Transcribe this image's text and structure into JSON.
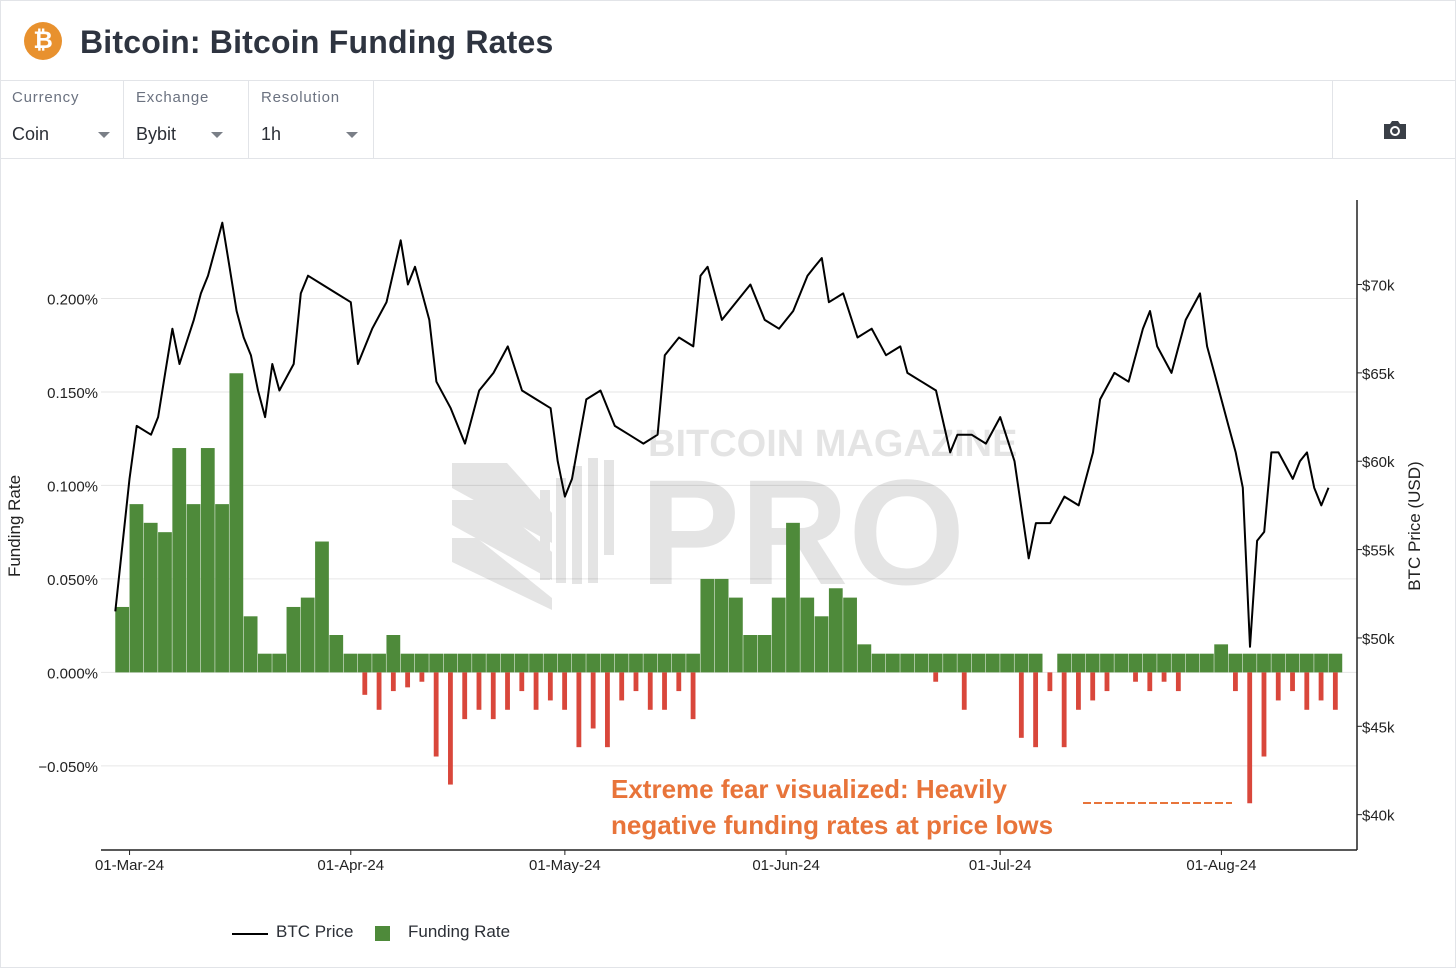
{
  "header": {
    "title": "Bitcoin: Bitcoin Funding Rates",
    "logo_glyph": "₿"
  },
  "controls": [
    {
      "label": "Currency",
      "value": "Coin"
    },
    {
      "label": "Exchange",
      "value": "Bybit"
    },
    {
      "label": "Resolution",
      "value": "1h"
    }
  ],
  "toolbar": {
    "icon": "camera-icon"
  },
  "watermark": {
    "line1": "BITCOIN MAGAZINE",
    "line2": "PRO"
  },
  "annotation": {
    "line1": "Extreme fear visualized: Heavily",
    "line2": "negative funding rates at price lows",
    "color": "#e8743a"
  },
  "legend": {
    "price": "BTC Price",
    "funding": "Funding Rate"
  },
  "colors": {
    "price": "#000000",
    "positive": "#4e8a3a",
    "negative": "#d9473b"
  },
  "chart_data": {
    "type": "bar",
    "title": "Bitcoin: Bitcoin Funding Rates",
    "xlabel": "",
    "ylabel": "Funding Rate",
    "y2label": "BTC Price (USD)",
    "x_ticks": [
      "01-Mar-24",
      "01-Apr-24",
      "01-May-24",
      "01-Jun-24",
      "01-Jul-24",
      "01-Aug-24"
    ],
    "x_range": [
      "2024-02-26",
      "2024-08-20"
    ],
    "y_ticks": [
      "0.200%",
      "0.150%",
      "0.100%",
      "0.050%",
      "0.000%",
      "−0.050%"
    ],
    "ylim": [
      -0.095,
      0.25
    ],
    "y2_ticks": [
      "$70k",
      "$65k",
      "$60k",
      "$55k",
      "$50k",
      "$45k",
      "$40k"
    ],
    "y2lim": [
      38000,
      74500
    ],
    "grid": true,
    "legend_position": "bottom-left",
    "series": [
      {
        "name": "BTC Price",
        "type": "line",
        "axis": "right",
        "points": [
          [
            "2024-02-28",
            51500
          ],
          [
            "2024-03-01",
            59000
          ],
          [
            "2024-03-02",
            62000
          ],
          [
            "2024-03-04",
            61500
          ],
          [
            "2024-03-05",
            62500
          ],
          [
            "2024-03-06",
            65000
          ],
          [
            "2024-03-07",
            67500
          ],
          [
            "2024-03-08",
            65500
          ],
          [
            "2024-03-10",
            68000
          ],
          [
            "2024-03-11",
            69500
          ],
          [
            "2024-03-12",
            70500
          ],
          [
            "2024-03-13",
            72000
          ],
          [
            "2024-03-14",
            73500
          ],
          [
            "2024-03-15",
            71000
          ],
          [
            "2024-03-16",
            68500
          ],
          [
            "2024-03-17",
            67000
          ],
          [
            "2024-03-18",
            66000
          ],
          [
            "2024-03-19",
            64000
          ],
          [
            "2024-03-20",
            62500
          ],
          [
            "2024-03-21",
            65500
          ],
          [
            "2024-03-22",
            64000
          ],
          [
            "2024-03-24",
            65500
          ],
          [
            "2024-03-25",
            69500
          ],
          [
            "2024-03-26",
            70500
          ],
          [
            "2024-03-28",
            70000
          ],
          [
            "2024-03-30",
            69500
          ],
          [
            "2024-04-01",
            69000
          ],
          [
            "2024-04-02",
            65500
          ],
          [
            "2024-04-04",
            67500
          ],
          [
            "2024-04-06",
            69000
          ],
          [
            "2024-04-08",
            72500
          ],
          [
            "2024-04-09",
            70000
          ],
          [
            "2024-04-10",
            71000
          ],
          [
            "2024-04-12",
            68000
          ],
          [
            "2024-04-13",
            64500
          ],
          [
            "2024-04-15",
            63000
          ],
          [
            "2024-04-17",
            61000
          ],
          [
            "2024-04-19",
            64000
          ],
          [
            "2024-04-21",
            65000
          ],
          [
            "2024-04-23",
            66500
          ],
          [
            "2024-04-25",
            64000
          ],
          [
            "2024-04-27",
            63500
          ],
          [
            "2024-04-29",
            63000
          ],
          [
            "2024-04-30",
            60000
          ],
          [
            "2024-05-01",
            58000
          ],
          [
            "2024-05-02",
            59000
          ],
          [
            "2024-05-04",
            63500
          ],
          [
            "2024-05-06",
            64000
          ],
          [
            "2024-05-08",
            62000
          ],
          [
            "2024-05-10",
            61500
          ],
          [
            "2024-05-12",
            61000
          ],
          [
            "2024-05-14",
            61500
          ],
          [
            "2024-05-15",
            66000
          ],
          [
            "2024-05-17",
            67000
          ],
          [
            "2024-05-19",
            66500
          ],
          [
            "2024-05-20",
            70500
          ],
          [
            "2024-05-21",
            71000
          ],
          [
            "2024-05-23",
            68000
          ],
          [
            "2024-05-25",
            69000
          ],
          [
            "2024-05-27",
            70000
          ],
          [
            "2024-05-29",
            68000
          ],
          [
            "2024-05-31",
            67500
          ],
          [
            "2024-06-02",
            68500
          ],
          [
            "2024-06-04",
            70500
          ],
          [
            "2024-06-05",
            71000
          ],
          [
            "2024-06-06",
            71500
          ],
          [
            "2024-06-07",
            69000
          ],
          [
            "2024-06-09",
            69500
          ],
          [
            "2024-06-11",
            67000
          ],
          [
            "2024-06-13",
            67500
          ],
          [
            "2024-06-15",
            66000
          ],
          [
            "2024-06-17",
            66500
          ],
          [
            "2024-06-18",
            65000
          ],
          [
            "2024-06-20",
            64500
          ],
          [
            "2024-06-22",
            64000
          ],
          [
            "2024-06-24",
            60500
          ],
          [
            "2024-06-25",
            61500
          ],
          [
            "2024-06-27",
            61500
          ],
          [
            "2024-06-29",
            61000
          ],
          [
            "2024-07-01",
            62500
          ],
          [
            "2024-07-03",
            60000
          ],
          [
            "2024-07-05",
            54500
          ],
          [
            "2024-07-06",
            56500
          ],
          [
            "2024-07-08",
            56500
          ],
          [
            "2024-07-10",
            58000
          ],
          [
            "2024-07-12",
            57500
          ],
          [
            "2024-07-14",
            60500
          ],
          [
            "2024-07-15",
            63500
          ],
          [
            "2024-07-17",
            65000
          ],
          [
            "2024-07-19",
            64500
          ],
          [
            "2024-07-21",
            67500
          ],
          [
            "2024-07-22",
            68500
          ],
          [
            "2024-07-23",
            66500
          ],
          [
            "2024-07-25",
            65000
          ],
          [
            "2024-07-27",
            68000
          ],
          [
            "2024-07-29",
            69500
          ],
          [
            "2024-07-30",
            66500
          ],
          [
            "2024-07-31",
            65000
          ],
          [
            "2024-08-02",
            62000
          ],
          [
            "2024-08-03",
            60500
          ],
          [
            "2024-08-04",
            58500
          ],
          [
            "2024-08-05",
            49500
          ],
          [
            "2024-08-06",
            55500
          ],
          [
            "2024-08-07",
            56000
          ],
          [
            "2024-08-08",
            60500
          ],
          [
            "2024-08-09",
            60500
          ],
          [
            "2024-08-11",
            59000
          ],
          [
            "2024-08-12",
            60000
          ],
          [
            "2024-08-13",
            60500
          ],
          [
            "2024-08-14",
            58500
          ],
          [
            "2024-08-15",
            57500
          ],
          [
            "2024-08-16",
            58500
          ]
        ]
      },
      {
        "name": "Funding Rate",
        "type": "bar",
        "axis": "left",
        "note_bins": "2-day bins; max positive and min negative funding rate (%) per bin",
        "bins": [
          [
            "2024-02-28",
            0.035,
            0.0
          ],
          [
            "2024-03-01",
            0.09,
            0.0
          ],
          [
            "2024-03-03",
            0.08,
            0.0
          ],
          [
            "2024-03-05",
            0.075,
            0.0
          ],
          [
            "2024-03-07",
            0.12,
            0.0
          ],
          [
            "2024-03-09",
            0.09,
            0.0
          ],
          [
            "2024-03-11",
            0.12,
            0.0
          ],
          [
            "2024-03-13",
            0.09,
            0.0
          ],
          [
            "2024-03-15",
            0.16,
            0.0
          ],
          [
            "2024-03-17",
            0.03,
            0.0
          ],
          [
            "2024-03-19",
            0.01,
            0.0
          ],
          [
            "2024-03-21",
            0.01,
            0.0
          ],
          [
            "2024-03-23",
            0.035,
            0.0
          ],
          [
            "2024-03-25",
            0.04,
            0.0
          ],
          [
            "2024-03-27",
            0.07,
            0.0
          ],
          [
            "2024-03-29",
            0.02,
            0.0
          ],
          [
            "2024-03-31",
            0.01,
            0.0
          ],
          [
            "2024-04-02",
            0.01,
            -0.012
          ],
          [
            "2024-04-04",
            0.01,
            -0.02
          ],
          [
            "2024-04-06",
            0.02,
            -0.01
          ],
          [
            "2024-04-08",
            0.01,
            -0.008
          ],
          [
            "2024-04-10",
            0.01,
            -0.005
          ],
          [
            "2024-04-12",
            0.01,
            -0.045
          ],
          [
            "2024-04-14",
            0.01,
            -0.06
          ],
          [
            "2024-04-16",
            0.01,
            -0.025
          ],
          [
            "2024-04-18",
            0.01,
            -0.02
          ],
          [
            "2024-04-20",
            0.01,
            -0.025
          ],
          [
            "2024-04-22",
            0.01,
            -0.02
          ],
          [
            "2024-04-24",
            0.01,
            -0.01
          ],
          [
            "2024-04-26",
            0.01,
            -0.02
          ],
          [
            "2024-04-28",
            0.01,
            -0.015
          ],
          [
            "2024-04-30",
            0.01,
            -0.02
          ],
          [
            "2024-05-02",
            0.01,
            -0.04
          ],
          [
            "2024-05-04",
            0.01,
            -0.03
          ],
          [
            "2024-05-06",
            0.01,
            -0.04
          ],
          [
            "2024-05-08",
            0.01,
            -0.015
          ],
          [
            "2024-05-10",
            0.01,
            -0.01
          ],
          [
            "2024-05-12",
            0.01,
            -0.02
          ],
          [
            "2024-05-14",
            0.01,
            -0.02
          ],
          [
            "2024-05-16",
            0.01,
            -0.01
          ],
          [
            "2024-05-18",
            0.01,
            -0.025
          ],
          [
            "2024-05-20",
            0.05,
            0.0
          ],
          [
            "2024-05-22",
            0.05,
            0.0
          ],
          [
            "2024-05-24",
            0.04,
            0.0
          ],
          [
            "2024-05-26",
            0.02,
            0.0
          ],
          [
            "2024-05-28",
            0.02,
            0.0
          ],
          [
            "2024-05-30",
            0.04,
            0.0
          ],
          [
            "2024-06-01",
            0.08,
            0.0
          ],
          [
            "2024-06-03",
            0.04,
            0.0
          ],
          [
            "2024-06-05",
            0.03,
            0.0
          ],
          [
            "2024-06-07",
            0.045,
            0.0
          ],
          [
            "2024-06-09",
            0.04,
            0.0
          ],
          [
            "2024-06-11",
            0.015,
            0.0
          ],
          [
            "2024-06-13",
            0.01,
            0.0
          ],
          [
            "2024-06-15",
            0.01,
            0.0
          ],
          [
            "2024-06-17",
            0.01,
            0.0
          ],
          [
            "2024-06-19",
            0.01,
            0.0
          ],
          [
            "2024-06-21",
            0.01,
            -0.005
          ],
          [
            "2024-06-23",
            0.01,
            0.0
          ],
          [
            "2024-06-25",
            0.01,
            -0.02
          ],
          [
            "2024-06-27",
            0.01,
            0.0
          ],
          [
            "2024-06-29",
            0.01,
            0.0
          ],
          [
            "2024-07-01",
            0.01,
            0.0
          ],
          [
            "2024-07-03",
            0.01,
            -0.035
          ],
          [
            "2024-07-05",
            0.01,
            -0.04
          ],
          [
            "2024-07-07",
            0.0,
            -0.01
          ],
          [
            "2024-07-09",
            0.01,
            -0.04
          ],
          [
            "2024-07-11",
            0.01,
            -0.02
          ],
          [
            "2024-07-13",
            0.01,
            -0.015
          ],
          [
            "2024-07-15",
            0.01,
            -0.01
          ],
          [
            "2024-07-17",
            0.01,
            0.0
          ],
          [
            "2024-07-19",
            0.01,
            -0.005
          ],
          [
            "2024-07-21",
            0.01,
            -0.01
          ],
          [
            "2024-07-23",
            0.01,
            -0.005
          ],
          [
            "2024-07-25",
            0.01,
            -0.01
          ],
          [
            "2024-07-27",
            0.01,
            0.0
          ],
          [
            "2024-07-29",
            0.01,
            0.0
          ],
          [
            "2024-07-31",
            0.015,
            0.0
          ],
          [
            "2024-08-02",
            0.01,
            -0.01
          ],
          [
            "2024-08-04",
            0.01,
            -0.07
          ],
          [
            "2024-08-06",
            0.01,
            -0.045
          ],
          [
            "2024-08-08",
            0.01,
            -0.015
          ],
          [
            "2024-08-10",
            0.01,
            -0.01
          ],
          [
            "2024-08-12",
            0.01,
            -0.02
          ],
          [
            "2024-08-14",
            0.01,
            -0.015
          ],
          [
            "2024-08-16",
            0.01,
            -0.02
          ]
        ]
      }
    ]
  }
}
